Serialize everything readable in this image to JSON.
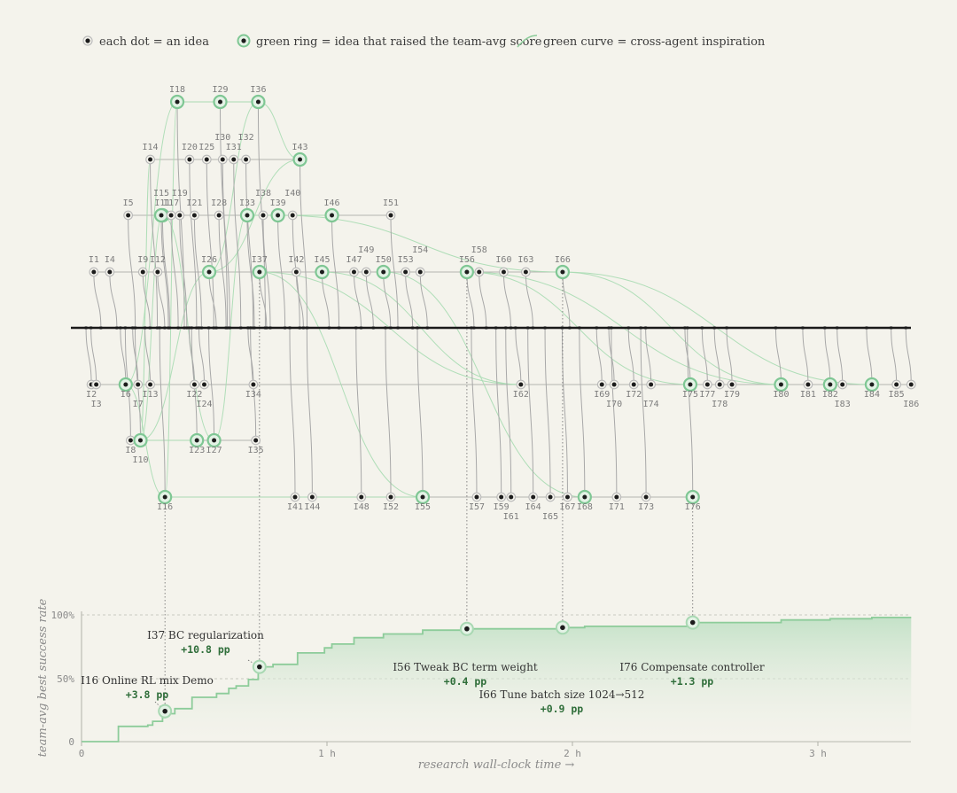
{
  "legend": {
    "dot": "each dot = an idea",
    "ring": "green ring = idea that raised the team-avg score",
    "curve": "green curve = cross-agent inspiration"
  },
  "colors": {
    "background": "#f4f3ec",
    "dot_fill": "#1c1c1c",
    "ring": "#7fc794",
    "inspiration_curve": "#9ed4aa",
    "edge": "#a8a8a8",
    "timeline": "#1a1a1a",
    "score_line": "#8dcc9a"
  },
  "ideas": [
    {
      "id": "I1",
      "lane": 1,
      "t": 0.05,
      "label_pos": "above"
    },
    {
      "id": "I2",
      "lane": -1,
      "t": 0.04,
      "label_pos": "below"
    },
    {
      "id": "I3",
      "lane": -1,
      "t": 0.06,
      "label_pos": "below2"
    },
    {
      "id": "I4",
      "lane": 1,
      "t": 0.115,
      "label_pos": "above"
    },
    {
      "id": "I5",
      "lane": 2,
      "t": 0.19,
      "label_pos": "above"
    },
    {
      "id": "I6",
      "lane": -1,
      "t": 0.18,
      "label_pos": "below",
      "ring": true
    },
    {
      "id": "I7",
      "lane": -1,
      "t": 0.23,
      "label_pos": "below2"
    },
    {
      "id": "I8",
      "lane": -2,
      "t": 0.2,
      "label_pos": "below"
    },
    {
      "id": "I9",
      "lane": 1,
      "t": 0.25,
      "label_pos": "above"
    },
    {
      "id": "I10",
      "lane": -2,
      "t": 0.24,
      "label_pos": "below2",
      "ring": true
    },
    {
      "id": "I11",
      "lane": 2,
      "t": 0.33,
      "label_pos": "above",
      "ring": true
    },
    {
      "id": "I12",
      "lane": 1,
      "t": 0.31,
      "label_pos": "above"
    },
    {
      "id": "I13",
      "lane": -1,
      "t": 0.28,
      "label_pos": "below"
    },
    {
      "id": "I14",
      "lane": 3,
      "t": 0.28,
      "label_pos": "above"
    },
    {
      "id": "I15",
      "lane": 2,
      "t": 0.325,
      "label_pos": "above2",
      "ring": true
    },
    {
      "id": "I16",
      "lane": -3,
      "t": 0.34,
      "label_pos": "below",
      "ring": true
    },
    {
      "id": "I17",
      "lane": 2,
      "t": 0.365,
      "label_pos": "above"
    },
    {
      "id": "I18",
      "lane": 4,
      "t": 0.39,
      "label_pos": "above",
      "ring": true
    },
    {
      "id": "I19",
      "lane": 2,
      "t": 0.4,
      "label_pos": "above2"
    },
    {
      "id": "I20",
      "lane": 3,
      "t": 0.44,
      "label_pos": "above"
    },
    {
      "id": "I21",
      "lane": 2,
      "t": 0.46,
      "label_pos": "above"
    },
    {
      "id": "I22",
      "lane": -1,
      "t": 0.46,
      "label_pos": "below"
    },
    {
      "id": "I23",
      "lane": -2,
      "t": 0.47,
      "label_pos": "below",
      "ring": true
    },
    {
      "id": "I24",
      "lane": -1,
      "t": 0.5,
      "label_pos": "below2"
    },
    {
      "id": "I25",
      "lane": 3,
      "t": 0.51,
      "label_pos": "above"
    },
    {
      "id": "I26",
      "lane": 1,
      "t": 0.52,
      "label_pos": "above",
      "ring": true
    },
    {
      "id": "I27",
      "lane": -2,
      "t": 0.54,
      "label_pos": "below",
      "ring": true
    },
    {
      "id": "I28",
      "lane": 2,
      "t": 0.56,
      "label_pos": "above"
    },
    {
      "id": "I29",
      "lane": 4,
      "t": 0.565,
      "label_pos": "above",
      "ring": true
    },
    {
      "id": "I30",
      "lane": 3,
      "t": 0.575,
      "label_pos": "above2"
    },
    {
      "id": "I31",
      "lane": 3,
      "t": 0.62,
      "label_pos": "above"
    },
    {
      "id": "I32",
      "lane": 3,
      "t": 0.67,
      "label_pos": "above2"
    },
    {
      "id": "I33",
      "lane": 2,
      "t": 0.675,
      "label_pos": "above",
      "ring": true
    },
    {
      "id": "I34",
      "lane": -1,
      "t": 0.7,
      "label_pos": "below"
    },
    {
      "id": "I35",
      "lane": -2,
      "t": 0.71,
      "label_pos": "below"
    },
    {
      "id": "I36",
      "lane": 4,
      "t": 0.72,
      "label_pos": "above",
      "ring": true
    },
    {
      "id": "I37",
      "lane": 1,
      "t": 0.725,
      "label_pos": "above",
      "ring": true
    },
    {
      "id": "I38",
      "lane": 2,
      "t": 0.74,
      "label_pos": "above2"
    },
    {
      "id": "I39",
      "lane": 2,
      "t": 0.8,
      "label_pos": "above",
      "ring": true
    },
    {
      "id": "I40",
      "lane": 2,
      "t": 0.86,
      "label_pos": "above2"
    },
    {
      "id": "I41",
      "lane": -3,
      "t": 0.87,
      "label_pos": "below"
    },
    {
      "id": "I42",
      "lane": 1,
      "t": 0.875,
      "label_pos": "above"
    },
    {
      "id": "I43",
      "lane": 3,
      "t": 0.89,
      "label_pos": "above",
      "ring": true
    },
    {
      "id": "I44",
      "lane": -3,
      "t": 0.94,
      "label_pos": "below"
    },
    {
      "id": "I45",
      "lane": 1,
      "t": 0.98,
      "label_pos": "above",
      "ring": true
    },
    {
      "id": "I46",
      "lane": 2,
      "t": 1.02,
      "label_pos": "above",
      "ring": true
    },
    {
      "id": "I47",
      "lane": 1,
      "t": 1.11,
      "label_pos": "above"
    },
    {
      "id": "I48",
      "lane": -3,
      "t": 1.14,
      "label_pos": "below"
    },
    {
      "id": "I49",
      "lane": 1,
      "t": 1.16,
      "label_pos": "above2"
    },
    {
      "id": "I50",
      "lane": 1,
      "t": 1.23,
      "label_pos": "above",
      "ring": true
    },
    {
      "id": "I51",
      "lane": 2,
      "t": 1.26,
      "label_pos": "above"
    },
    {
      "id": "I52",
      "lane": -3,
      "t": 1.26,
      "label_pos": "below"
    },
    {
      "id": "I53",
      "lane": 1,
      "t": 1.32,
      "label_pos": "above"
    },
    {
      "id": "I54",
      "lane": 1,
      "t": 1.38,
      "label_pos": "above2"
    },
    {
      "id": "I55",
      "lane": -3,
      "t": 1.39,
      "label_pos": "below",
      "ring": true
    },
    {
      "id": "I56",
      "lane": 1,
      "t": 1.57,
      "label_pos": "above",
      "ring": true
    },
    {
      "id": "I57",
      "lane": -3,
      "t": 1.61,
      "label_pos": "below"
    },
    {
      "id": "I58",
      "lane": 1,
      "t": 1.62,
      "label_pos": "above2"
    },
    {
      "id": "I59",
      "lane": -3,
      "t": 1.71,
      "label_pos": "below"
    },
    {
      "id": "I60",
      "lane": 1,
      "t": 1.72,
      "label_pos": "above"
    },
    {
      "id": "I61",
      "lane": -3,
      "t": 1.75,
      "label_pos": "below2"
    },
    {
      "id": "I62",
      "lane": -1,
      "t": 1.79,
      "label_pos": "below"
    },
    {
      "id": "I63",
      "lane": 1,
      "t": 1.81,
      "label_pos": "above"
    },
    {
      "id": "I64",
      "lane": -3,
      "t": 1.84,
      "label_pos": "below"
    },
    {
      "id": "I65",
      "lane": -3,
      "t": 1.91,
      "label_pos": "below2"
    },
    {
      "id": "I66",
      "lane": 1,
      "t": 1.96,
      "label_pos": "above",
      "ring": true
    },
    {
      "id": "I67",
      "lane": -3,
      "t": 1.98,
      "label_pos": "below"
    },
    {
      "id": "I68",
      "lane": -3,
      "t": 2.05,
      "label_pos": "below",
      "ring": true
    },
    {
      "id": "I69",
      "lane": -1,
      "t": 2.12,
      "label_pos": "below"
    },
    {
      "id": "I70",
      "lane": -1,
      "t": 2.17,
      "label_pos": "below2"
    },
    {
      "id": "I71",
      "lane": -3,
      "t": 2.18,
      "label_pos": "below"
    },
    {
      "id": "I72",
      "lane": -1,
      "t": 2.25,
      "label_pos": "below"
    },
    {
      "id": "I73",
      "lane": -3,
      "t": 2.3,
      "label_pos": "below"
    },
    {
      "id": "I74",
      "lane": -1,
      "t": 2.32,
      "label_pos": "below2"
    },
    {
      "id": "I75",
      "lane": -1,
      "t": 2.48,
      "label_pos": "below",
      "ring": true
    },
    {
      "id": "I76",
      "lane": -3,
      "t": 2.49,
      "label_pos": "below",
      "ring": true
    },
    {
      "id": "I77",
      "lane": -1,
      "t": 2.55,
      "label_pos": "below"
    },
    {
      "id": "I78",
      "lane": -1,
      "t": 2.6,
      "label_pos": "below2"
    },
    {
      "id": "I79",
      "lane": -1,
      "t": 2.65,
      "label_pos": "below"
    },
    {
      "id": "I80",
      "lane": -1,
      "t": 2.85,
      "label_pos": "below",
      "ring": true
    },
    {
      "id": "I81",
      "lane": -1,
      "t": 2.96,
      "label_pos": "below"
    },
    {
      "id": "I82",
      "lane": -1,
      "t": 3.05,
      "label_pos": "below",
      "ring": true
    },
    {
      "id": "I83",
      "lane": -1,
      "t": 3.1,
      "label_pos": "below2"
    },
    {
      "id": "I84",
      "lane": -1,
      "t": 3.22,
      "label_pos": "below",
      "ring": true
    },
    {
      "id": "I85",
      "lane": -1,
      "t": 3.32,
      "label_pos": "below"
    },
    {
      "id": "I86",
      "lane": -1,
      "t": 3.38,
      "label_pos": "below2"
    }
  ],
  "inspirations": [
    [
      "I16",
      "I18"
    ],
    [
      "I10",
      "I14"
    ],
    [
      "I10",
      "I11"
    ],
    [
      "I6",
      "I16"
    ],
    [
      "I10",
      "I23"
    ],
    [
      "I26",
      "I36"
    ],
    [
      "I18",
      "I29"
    ],
    [
      "I29",
      "I36"
    ],
    [
      "I16",
      "I55"
    ],
    [
      "I26",
      "I43"
    ],
    [
      "I37",
      "I55"
    ],
    [
      "I33",
      "I46"
    ],
    [
      "I36",
      "I43"
    ],
    [
      "I10",
      "I26"
    ],
    [
      "I11",
      "I27"
    ],
    [
      "I37",
      "I62"
    ],
    [
      "I45",
      "I62"
    ],
    [
      "I56",
      "I80"
    ],
    [
      "I66",
      "I80"
    ],
    [
      "I50",
      "I68"
    ],
    [
      "I56",
      "I75"
    ],
    [
      "I66",
      "I84"
    ],
    [
      "I39",
      "I66"
    ],
    [
      "I27",
      "I33"
    ],
    [
      "I6",
      "I18"
    ]
  ],
  "score_chart": {
    "xlabel": "research wall-clock time →",
    "ylabel": "team-avg best success rate",
    "y_ticks": [
      "0",
      "50%",
      "100%"
    ],
    "x_ticks": [
      "0",
      "1 h",
      "2 h",
      "3 h"
    ],
    "xlim": [
      0,
      3.38
    ],
    "ylim": [
      0,
      1
    ],
    "steps": [
      [
        0,
        0
      ],
      [
        0.15,
        0
      ],
      [
        0.15,
        0.12
      ],
      [
        0.27,
        0.12
      ],
      [
        0.27,
        0.13
      ],
      [
        0.29,
        0.13
      ],
      [
        0.29,
        0.16
      ],
      [
        0.33,
        0.16
      ],
      [
        0.33,
        0.19
      ],
      [
        0.34,
        0.19
      ],
      [
        0.34,
        0.22
      ],
      [
        0.38,
        0.22
      ],
      [
        0.38,
        0.26
      ],
      [
        0.45,
        0.26
      ],
      [
        0.45,
        0.35
      ],
      [
        0.55,
        0.35
      ],
      [
        0.55,
        0.38
      ],
      [
        0.6,
        0.38
      ],
      [
        0.6,
        0.42
      ],
      [
        0.63,
        0.42
      ],
      [
        0.63,
        0.44
      ],
      [
        0.68,
        0.44
      ],
      [
        0.68,
        0.49
      ],
      [
        0.72,
        0.49
      ],
      [
        0.72,
        0.59
      ],
      [
        0.78,
        0.59
      ],
      [
        0.78,
        0.61
      ],
      [
        0.88,
        0.61
      ],
      [
        0.88,
        0.7
      ],
      [
        0.99,
        0.7
      ],
      [
        0.99,
        0.74
      ],
      [
        1.02,
        0.74
      ],
      [
        1.02,
        0.77
      ],
      [
        1.11,
        0.77
      ],
      [
        1.11,
        0.82
      ],
      [
        1.23,
        0.82
      ],
      [
        1.23,
        0.85
      ],
      [
        1.39,
        0.85
      ],
      [
        1.39,
        0.88
      ],
      [
        1.57,
        0.88
      ],
      [
        1.57,
        0.89
      ],
      [
        1.96,
        0.89
      ],
      [
        1.96,
        0.9
      ],
      [
        2.05,
        0.9
      ],
      [
        2.05,
        0.91
      ],
      [
        2.49,
        0.91
      ],
      [
        2.49,
        0.94
      ],
      [
        2.85,
        0.94
      ],
      [
        2.85,
        0.96
      ],
      [
        3.05,
        0.96
      ],
      [
        3.05,
        0.97
      ],
      [
        3.22,
        0.97
      ],
      [
        3.22,
        0.98
      ],
      [
        3.38,
        0.98
      ]
    ]
  },
  "annotations": [
    {
      "id": "I16",
      "title": "I16 Online RL mix Demo",
      "delta": "+3.8 pp",
      "t": 0.34,
      "y": 0.24
    },
    {
      "id": "I37",
      "title": "I37 BC regularization",
      "delta": "+10.8 pp",
      "t": 0.725,
      "y": 0.59
    },
    {
      "id": "I56",
      "title": "I56 Tweak BC term weight",
      "delta": "+0.4 pp",
      "t": 1.57,
      "y": 0.89
    },
    {
      "id": "I66",
      "title": "I66 Tune batch size 1024→512",
      "delta": "+0.9 pp",
      "t": 1.96,
      "y": 0.9
    },
    {
      "id": "I76",
      "title": "I76 Compensate controller",
      "delta": "+1.3 pp",
      "t": 2.49,
      "y": 0.94
    }
  ]
}
